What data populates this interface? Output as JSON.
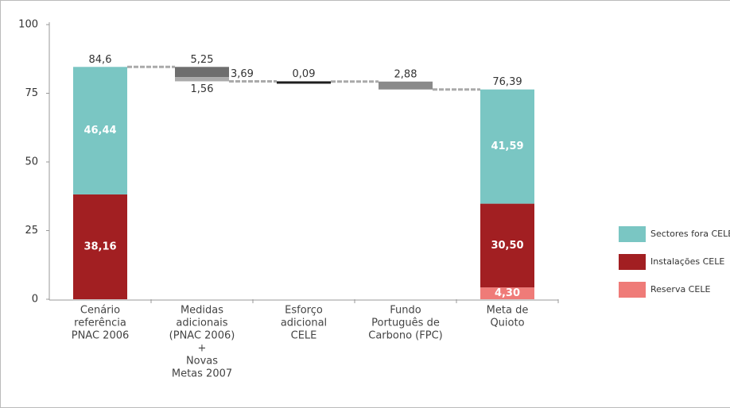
{
  "chart_data": {
    "type": "waterfall",
    "categories": [
      [
        "Cenário",
        "referência",
        "PNAC 2006"
      ],
      [
        "Medidas",
        "adicionais",
        "(PNAC 2006)",
        "+",
        "Novas",
        "Metas 2007"
      ],
      [
        "Esforço",
        "adicional",
        "CELE"
      ],
      [
        "Fundo",
        "Português de",
        "Carbono (FPC)"
      ],
      [
        "Meta de",
        "Quioto"
      ]
    ],
    "ylim": [
      0,
      100
    ],
    "yticks": [
      0,
      25,
      50,
      75,
      100
    ],
    "series": [
      {
        "name": "Sectores fora CELE",
        "color": "#7ac6c3",
        "values": [
          46.44,
          null,
          null,
          null,
          41.59
        ],
        "value_labels": [
          "46,44",
          null,
          null,
          null,
          "41,59"
        ]
      },
      {
        "name": "Instalações CELE",
        "color": "#a21f22",
        "values": [
          38.16,
          null,
          null,
          null,
          30.5
        ],
        "value_labels": [
          "38,16",
          null,
          null,
          null,
          "30,50"
        ]
      },
      {
        "name": "Reserva CELE",
        "color": "#ef7b78",
        "values": [
          null,
          null,
          null,
          null,
          4.3
        ],
        "value_labels": [
          null,
          null,
          null,
          null,
          "4,30"
        ]
      }
    ],
    "totals": [
      84.6,
      null,
      null,
      null,
      76.39
    ],
    "total_labels": [
      "84,6",
      null,
      null,
      null,
      "76,39"
    ],
    "changes": [
      null,
      5.25,
      0.09,
      2.88,
      null
    ],
    "change_labels": [
      null,
      "5,25",
      "0,09",
      "2,88",
      null
    ],
    "change_colors": [
      null,
      "#6e6e6e",
      "#1e1e1e",
      "#8a8a8a",
      null
    ],
    "change_parts": [
      null,
      [
        3.69,
        1.56
      ],
      null,
      null,
      null
    ],
    "change_part_labels": [
      null,
      [
        "3,69",
        "1,56"
      ],
      null,
      null,
      null
    ],
    "change_part_colors": [
      null,
      [
        "#6e6e6e",
        "#ababab"
      ],
      null,
      null,
      null
    ],
    "legend": "right"
  }
}
